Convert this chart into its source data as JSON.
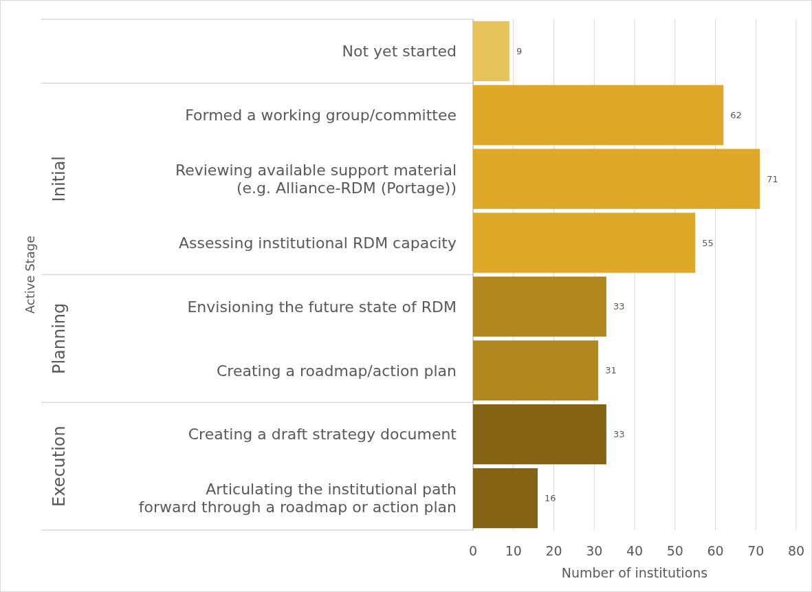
{
  "chart_data": {
    "type": "bar",
    "orientation": "horizontal",
    "categories": [
      "Not yet started",
      "Formed a working group/committee",
      "Reviewing available support material (e.g. Alliance-RDM (Portage))",
      "Assessing institutional RDM capacity",
      "Envisioning the future state of RDM",
      "Creating a roadmap/action plan",
      "Creating a draft strategy document",
      "Articulating the institutional path forward through a roadmap or action plan"
    ],
    "values": [
      9,
      62,
      71,
      55,
      33,
      31,
      33,
      16
    ],
    "colors": [
      "#e5c25a",
      "#dea829",
      "#dea829",
      "#dea829",
      "#b0861f",
      "#b0861f",
      "#846315",
      "#846315"
    ],
    "data_labels": true,
    "xlim": [
      0,
      80
    ],
    "xticks": [
      0,
      10,
      20,
      30,
      40,
      50,
      60,
      70,
      80
    ],
    "grid": "x",
    "xlabel": "Number of institutions",
    "annotations": [
      "Active Stage",
      "Initial",
      "Planning",
      "Execution"
    ]
  }
}
